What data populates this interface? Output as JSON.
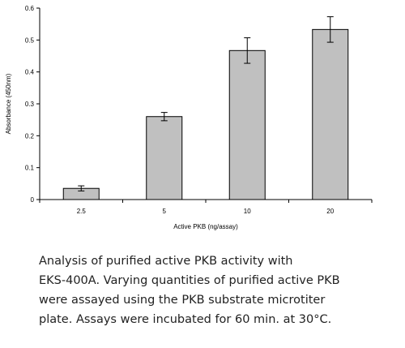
{
  "chart_data": {
    "type": "bar",
    "categories": [
      "2.5",
      "5",
      "10",
      "20"
    ],
    "values": [
      0.035,
      0.26,
      0.467,
      0.533
    ],
    "errors": [
      0.008,
      0.013,
      0.04,
      0.04
    ],
    "xlabel": "Active PKB (ng/assay)",
    "ylabel": "Absorbance (450nm)",
    "ylim": [
      0,
      0.6
    ],
    "yticks": [
      "0",
      "0.1",
      "0.2",
      "0.3",
      "0.4",
      "0.5",
      "0.6"
    ],
    "grid": false,
    "legend": "none",
    "bar_color": "#c0c0c0",
    "bar_edge_color": "#000000"
  },
  "caption": {
    "lines": [
      "Analysis of purified active PKB activity with",
      "EKS-400A.  Varying quantities of purified active PKB",
      "were assayed using the PKB substrate microtiter",
      "plate.  Assays were incubated for 60 min. at 30°C."
    ]
  }
}
